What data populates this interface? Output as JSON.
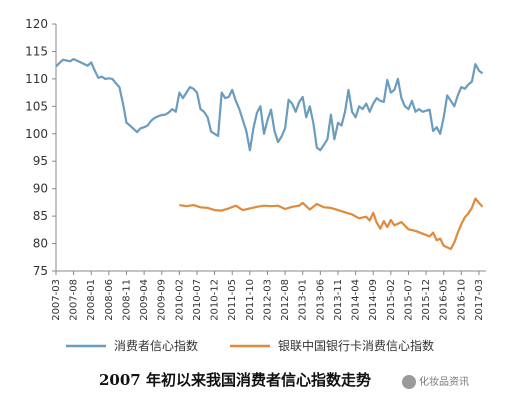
{
  "chart_data": {
    "type": "line",
    "ylim": [
      75,
      120
    ],
    "yticks": [
      75,
      80,
      85,
      90,
      95,
      100,
      105,
      110,
      115,
      120
    ],
    "x_start": "2007-03",
    "x_end": "2017-05",
    "xticks": [
      "2007-03",
      "2007-08",
      "2008-01",
      "2008-06",
      "2008-11",
      "2009-04",
      "2009-09",
      "2010-02",
      "2010-07",
      "2010-12",
      "2011-05",
      "2011-10",
      "2012-03",
      "2012-08",
      "2013-01",
      "2013-06",
      "2013-11",
      "2014-04",
      "2014-09",
      "2015-02",
      "2015-07",
      "2015-12",
      "2016-05",
      "2016-10",
      "2017-03"
    ],
    "legend_position": "bottom",
    "grid": false,
    "series": [
      {
        "name": "消费者信心指数",
        "color": "#6a9cbf",
        "points": [
          [
            "2007-03",
            112.3
          ],
          [
            "2007-05",
            113.5
          ],
          [
            "2007-07",
            113.2
          ],
          [
            "2007-08",
            113.6
          ],
          [
            "2007-10",
            113.0
          ],
          [
            "2007-12",
            112.4
          ],
          [
            "2008-01",
            113.0
          ],
          [
            "2008-02",
            111.5
          ],
          [
            "2008-03",
            110.2
          ],
          [
            "2008-04",
            110.4
          ],
          [
            "2008-05",
            110.0
          ],
          [
            "2008-06",
            110.1
          ],
          [
            "2008-07",
            110.0
          ],
          [
            "2008-08",
            109.2
          ],
          [
            "2008-09",
            108.5
          ],
          [
            "2008-10",
            105.5
          ],
          [
            "2008-11",
            102.0
          ],
          [
            "2008-12",
            101.5
          ],
          [
            "2009-01",
            100.9
          ],
          [
            "2009-02",
            100.3
          ],
          [
            "2009-03",
            101.0
          ],
          [
            "2009-04",
            101.2
          ],
          [
            "2009-05",
            101.5
          ],
          [
            "2009-06",
            102.4
          ],
          [
            "2009-07",
            102.9
          ],
          [
            "2009-08",
            103.2
          ],
          [
            "2009-09",
            103.4
          ],
          [
            "2009-10",
            103.5
          ],
          [
            "2009-11",
            103.9
          ],
          [
            "2009-12",
            104.5
          ],
          [
            "2010-01",
            104.0
          ],
          [
            "2010-02",
            107.5
          ],
          [
            "2010-03",
            106.5
          ],
          [
            "2010-04",
            107.5
          ],
          [
            "2010-05",
            108.5
          ],
          [
            "2010-06",
            108.2
          ],
          [
            "2010-07",
            107.5
          ],
          [
            "2010-08",
            104.5
          ],
          [
            "2010-09",
            104.0
          ],
          [
            "2010-10",
            103.0
          ],
          [
            "2010-11",
            100.4
          ],
          [
            "2010-12",
            100.0
          ],
          [
            "2011-01",
            99.6
          ],
          [
            "2011-02",
            107.5
          ],
          [
            "2011-03",
            106.5
          ],
          [
            "2011-04",
            106.7
          ],
          [
            "2011-05",
            108.0
          ],
          [
            "2011-06",
            106.0
          ],
          [
            "2011-07",
            104.5
          ],
          [
            "2011-08",
            102.5
          ],
          [
            "2011-09",
            100.5
          ],
          [
            "2011-10",
            97.0
          ],
          [
            "2011-11",
            101.0
          ],
          [
            "2011-12",
            103.8
          ],
          [
            "2012-01",
            105.0
          ],
          [
            "2012-02",
            100.0
          ],
          [
            "2012-03",
            102.5
          ],
          [
            "2012-04",
            104.4
          ],
          [
            "2012-05",
            100.5
          ],
          [
            "2012-06",
            98.5
          ],
          [
            "2012-07",
            99.5
          ],
          [
            "2012-08",
            101.0
          ],
          [
            "2012-09",
            106.2
          ],
          [
            "2012-10",
            105.5
          ],
          [
            "2012-11",
            104.0
          ],
          [
            "2012-12",
            105.8
          ],
          [
            "2013-01",
            106.7
          ],
          [
            "2013-02",
            103.0
          ],
          [
            "2013-03",
            105.0
          ],
          [
            "2013-04",
            102.0
          ],
          [
            "2013-05",
            97.5
          ],
          [
            "2013-06",
            97.0
          ],
          [
            "2013-07",
            98.0
          ],
          [
            "2013-08",
            99.0
          ],
          [
            "2013-09",
            103.5
          ],
          [
            "2013-10",
            99.0
          ],
          [
            "2013-11",
            102.0
          ],
          [
            "2013-12",
            101.5
          ],
          [
            "2014-01",
            104.0
          ],
          [
            "2014-02",
            108.0
          ],
          [
            "2014-03",
            104.0
          ],
          [
            "2014-04",
            103.0
          ],
          [
            "2014-05",
            105.0
          ],
          [
            "2014-06",
            104.5
          ],
          [
            "2014-07",
            105.5
          ],
          [
            "2014-08",
            104.0
          ],
          [
            "2014-09",
            105.5
          ],
          [
            "2014-10",
            106.5
          ],
          [
            "2014-11",
            106.0
          ],
          [
            "2014-12",
            105.8
          ],
          [
            "2015-01",
            109.8
          ],
          [
            "2015-02",
            107.5
          ],
          [
            "2015-03",
            108.0
          ],
          [
            "2015-04",
            110.0
          ],
          [
            "2015-05",
            106.5
          ],
          [
            "2015-06",
            105.0
          ],
          [
            "2015-07",
            104.5
          ],
          [
            "2015-08",
            106.0
          ],
          [
            "2015-09",
            104.0
          ],
          [
            "2015-10",
            104.5
          ],
          [
            "2015-11",
            104.0
          ],
          [
            "2015-12",
            104.2
          ],
          [
            "2016-01",
            104.4
          ],
          [
            "2016-02",
            100.5
          ],
          [
            "2016-03",
            101.2
          ],
          [
            "2016-04",
            100.0
          ],
          [
            "2016-05",
            103.0
          ],
          [
            "2016-06",
            107.0
          ],
          [
            "2016-07",
            106.0
          ],
          [
            "2016-08",
            105.0
          ],
          [
            "2016-09",
            107.0
          ],
          [
            "2016-10",
            108.5
          ],
          [
            "2016-11",
            108.2
          ],
          [
            "2016-12",
            109.0
          ],
          [
            "2017-01",
            109.5
          ],
          [
            "2017-02",
            112.7
          ],
          [
            "2017-03",
            111.5
          ],
          [
            "2017-04",
            111.0
          ]
        ]
      },
      {
        "name": "银联中国银行卡消费信心指数",
        "color": "#e08a3c",
        "points": [
          [
            "2010-02",
            87.0
          ],
          [
            "2010-04",
            86.8
          ],
          [
            "2010-06",
            87.0
          ],
          [
            "2010-08",
            86.6
          ],
          [
            "2010-10",
            86.5
          ],
          [
            "2010-12",
            86.1
          ],
          [
            "2011-02",
            86.0
          ],
          [
            "2011-04",
            86.4
          ],
          [
            "2011-06",
            86.9
          ],
          [
            "2011-08",
            86.1
          ],
          [
            "2011-10",
            86.4
          ],
          [
            "2011-12",
            86.7
          ],
          [
            "2012-02",
            86.9
          ],
          [
            "2012-04",
            86.8
          ],
          [
            "2012-06",
            86.9
          ],
          [
            "2012-08",
            86.3
          ],
          [
            "2012-10",
            86.7
          ],
          [
            "2012-12",
            86.9
          ],
          [
            "2013-01",
            87.4
          ],
          [
            "2013-03",
            86.2
          ],
          [
            "2013-05",
            87.2
          ],
          [
            "2013-07",
            86.6
          ],
          [
            "2013-09",
            86.5
          ],
          [
            "2013-11",
            86.1
          ],
          [
            "2014-01",
            85.7
          ],
          [
            "2014-03",
            85.3
          ],
          [
            "2014-05",
            84.6
          ],
          [
            "2014-07",
            84.9
          ],
          [
            "2014-08",
            84.2
          ],
          [
            "2014-09",
            85.6
          ],
          [
            "2014-10",
            83.8
          ],
          [
            "2014-11",
            82.7
          ],
          [
            "2014-12",
            84.1
          ],
          [
            "2015-01",
            83.0
          ],
          [
            "2015-02",
            84.3
          ],
          [
            "2015-03",
            83.3
          ],
          [
            "2015-05",
            83.9
          ],
          [
            "2015-07",
            82.6
          ],
          [
            "2015-09",
            82.3
          ],
          [
            "2015-11",
            81.8
          ],
          [
            "2016-01",
            81.3
          ],
          [
            "2016-02",
            82.0
          ],
          [
            "2016-03",
            80.6
          ],
          [
            "2016-04",
            80.9
          ],
          [
            "2016-05",
            79.6
          ],
          [
            "2016-06",
            79.3
          ],
          [
            "2016-07",
            79.0
          ],
          [
            "2016-08",
            80.2
          ],
          [
            "2016-09",
            82.0
          ],
          [
            "2016-10",
            83.5
          ],
          [
            "2016-11",
            84.8
          ],
          [
            "2016-12",
            85.5
          ],
          [
            "2017-01",
            86.5
          ],
          [
            "2017-02",
            88.2
          ],
          [
            "2017-03",
            87.4
          ],
          [
            "2017-04",
            86.7
          ]
        ]
      }
    ]
  },
  "caption": "2007 年初以来我国消费者信心指数走势",
  "watermark": {
    "text": "化妆品资讯",
    "icon": "wechat-icon"
  }
}
